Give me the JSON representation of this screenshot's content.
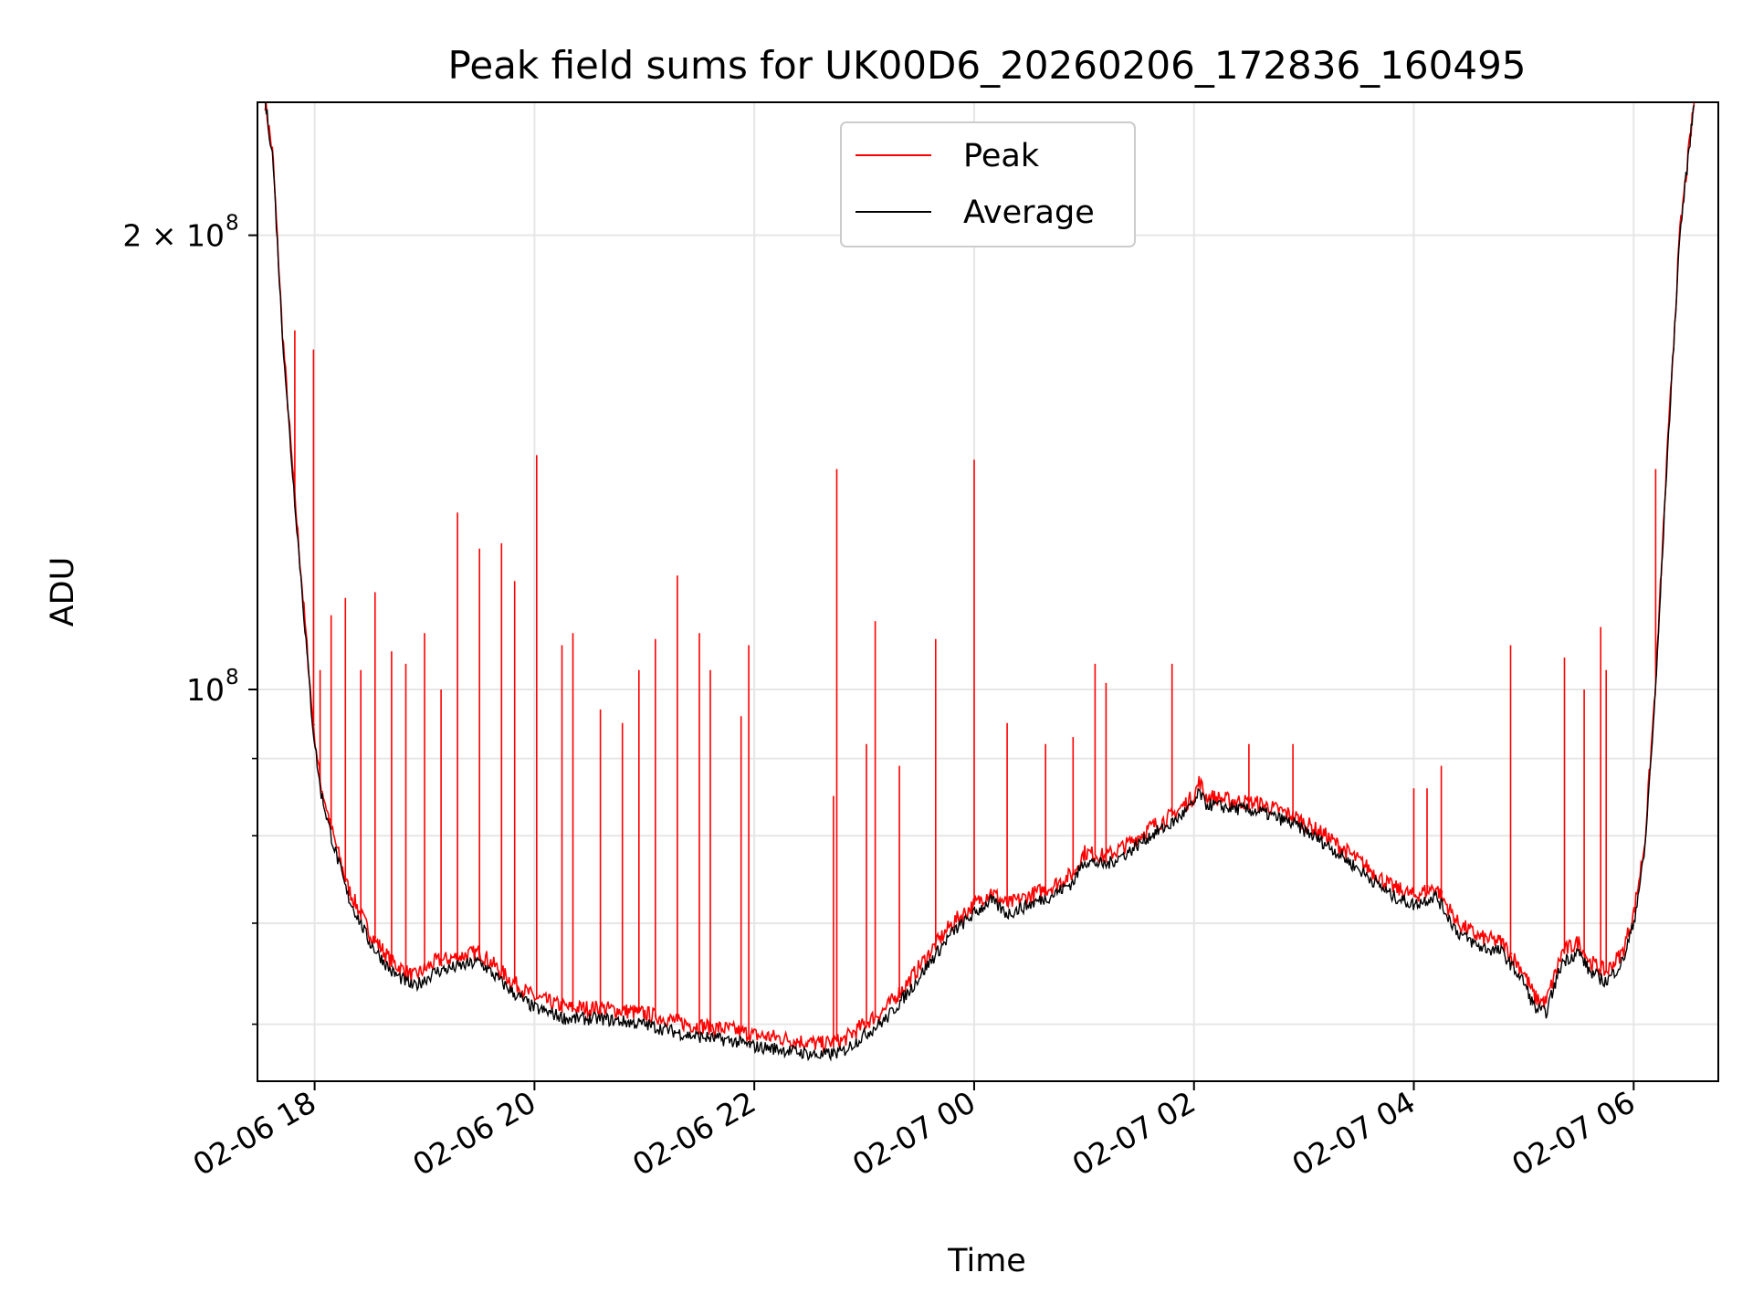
{
  "chart_data": {
    "type": "line",
    "title": "Peak field sums for UK00D6_20260206_172836_160495",
    "xlabel": "Time",
    "ylabel": "ADU",
    "yscale": "log",
    "ylim": [
      55000000,
      245000000
    ],
    "xlim_hours": [
      17.48,
      30.77
    ],
    "grid": true,
    "legend_position": "top-center",
    "x_ticks": [
      {
        "hour": 18,
        "label": "02-06 18"
      },
      {
        "hour": 20,
        "label": "02-06 20"
      },
      {
        "hour": 22,
        "label": "02-06 22"
      },
      {
        "hour": 24,
        "label": "02-07 00"
      },
      {
        "hour": 26,
        "label": "02-07 02"
      },
      {
        "hour": 28,
        "label": "02-07 04"
      },
      {
        "hour": 30,
        "label": "02-07 06"
      }
    ],
    "y_ticks_major": [
      {
        "value": 100000000,
        "base": "10",
        "exp": "8",
        "coef": ""
      },
      {
        "value": 200000000,
        "base": "10",
        "exp": "8",
        "coef": "2 × "
      }
    ],
    "y_ticks_minor": [
      60000000,
      70000000,
      80000000,
      90000000
    ],
    "series": [
      {
        "name": "Average",
        "color": "#000000",
        "points": [
          [
            17.55,
            245000000
          ],
          [
            17.62,
            225000000
          ],
          [
            17.7,
            175000000
          ],
          [
            17.78,
            145000000
          ],
          [
            17.85,
            125000000
          ],
          [
            17.92,
            108000000
          ],
          [
            17.98,
            95000000
          ],
          [
            18.05,
            86000000
          ],
          [
            18.15,
            80000000
          ],
          [
            18.3,
            73000000
          ],
          [
            18.5,
            68000000
          ],
          [
            18.7,
            65000000
          ],
          [
            18.9,
            63500000
          ],
          [
            19.1,
            65000000
          ],
          [
            19.3,
            65500000
          ],
          [
            19.5,
            66000000
          ],
          [
            19.8,
            63000000
          ],
          [
            20.0,
            61500000
          ],
          [
            20.3,
            60500000
          ],
          [
            20.6,
            60500000
          ],
          [
            21.0,
            60000000
          ],
          [
            21.4,
            59000000
          ],
          [
            21.8,
            58500000
          ],
          [
            22.0,
            58000000
          ],
          [
            22.2,
            57800000
          ],
          [
            22.4,
            57500000
          ],
          [
            22.6,
            57200000
          ],
          [
            22.8,
            57500000
          ],
          [
            23.0,
            59000000
          ],
          [
            23.2,
            60500000
          ],
          [
            23.4,
            63000000
          ],
          [
            23.6,
            66000000
          ],
          [
            23.8,
            69000000
          ],
          [
            24.0,
            71000000
          ],
          [
            24.15,
            72500000
          ],
          [
            24.3,
            71000000
          ],
          [
            24.5,
            72000000
          ],
          [
            24.7,
            73000000
          ],
          [
            24.9,
            74500000
          ],
          [
            25.0,
            77000000
          ],
          [
            25.2,
            76500000
          ],
          [
            25.4,
            78000000
          ],
          [
            25.6,
            80000000
          ],
          [
            25.8,
            81500000
          ],
          [
            26.0,
            84000000
          ],
          [
            26.05,
            85500000
          ],
          [
            26.1,
            84000000
          ],
          [
            26.3,
            83500000
          ],
          [
            26.6,
            83000000
          ],
          [
            26.9,
            81500000
          ],
          [
            27.2,
            79000000
          ],
          [
            27.5,
            76000000
          ],
          [
            27.8,
            73000000
          ],
          [
            28.0,
            72000000
          ],
          [
            28.2,
            73000000
          ],
          [
            28.4,
            69000000
          ],
          [
            28.6,
            67500000
          ],
          [
            28.8,
            67000000
          ],
          [
            29.0,
            64000000
          ],
          [
            29.1,
            61500000
          ],
          [
            29.2,
            61000000
          ],
          [
            29.35,
            66000000
          ],
          [
            29.5,
            67000000
          ],
          [
            29.6,
            65000000
          ],
          [
            29.75,
            64000000
          ],
          [
            29.9,
            66000000
          ],
          [
            30.0,
            70000000
          ],
          [
            30.1,
            78000000
          ],
          [
            30.2,
            100000000
          ],
          [
            30.3,
            140000000
          ],
          [
            30.42,
            200000000
          ],
          [
            30.55,
            245000000
          ]
        ]
      },
      {
        "name": "Peak",
        "color": "#ff0000",
        "points": [
          [
            17.55,
            245000000
          ],
          [
            17.62,
            226000000
          ],
          [
            17.7,
            176000000
          ],
          [
            17.78,
            146000000
          ],
          [
            17.85,
            126000000
          ],
          [
            17.92,
            109000000
          ],
          [
            17.98,
            96000000
          ],
          [
            18.05,
            87000000
          ],
          [
            18.15,
            81000000
          ],
          [
            18.3,
            74000000
          ],
          [
            18.5,
            69000000
          ],
          [
            18.7,
            66000000
          ],
          [
            18.9,
            64500000
          ],
          [
            19.1,
            66000000
          ],
          [
            19.3,
            66500000
          ],
          [
            19.5,
            67000000
          ],
          [
            19.8,
            64000000
          ],
          [
            20.0,
            62500000
          ],
          [
            20.3,
            61500000
          ],
          [
            20.6,
            61500000
          ],
          [
            21.0,
            61000000
          ],
          [
            21.4,
            60000000
          ],
          [
            21.8,
            59500000
          ],
          [
            22.0,
            59000000
          ],
          [
            22.2,
            58800000
          ],
          [
            22.4,
            58500000
          ],
          [
            22.6,
            58200000
          ],
          [
            22.8,
            58500000
          ],
          [
            23.0,
            60000000
          ],
          [
            23.2,
            61500000
          ],
          [
            23.4,
            64000000
          ],
          [
            23.6,
            67000000
          ],
          [
            23.8,
            70000000
          ],
          [
            24.0,
            72000000
          ],
          [
            24.15,
            73500000
          ],
          [
            24.3,
            72000000
          ],
          [
            24.5,
            73000000
          ],
          [
            24.7,
            74000000
          ],
          [
            24.9,
            75500000
          ],
          [
            25.0,
            78000000
          ],
          [
            25.2,
            77500000
          ],
          [
            25.4,
            79000000
          ],
          [
            25.6,
            81000000
          ],
          [
            25.8,
            82500000
          ],
          [
            26.0,
            85000000
          ],
          [
            26.05,
            87000000
          ],
          [
            26.1,
            85000000
          ],
          [
            26.3,
            84500000
          ],
          [
            26.6,
            84000000
          ],
          [
            26.9,
            82500000
          ],
          [
            27.2,
            80000000
          ],
          [
            27.5,
            77000000
          ],
          [
            27.8,
            74000000
          ],
          [
            28.0,
            73000000
          ],
          [
            28.2,
            74000000
          ],
          [
            28.4,
            70000000
          ],
          [
            28.6,
            68500000
          ],
          [
            28.8,
            68000000
          ],
          [
            29.0,
            65000000
          ],
          [
            29.1,
            62500000
          ],
          [
            29.2,
            62000000
          ],
          [
            29.35,
            67000000
          ],
          [
            29.5,
            68000000
          ],
          [
            29.6,
            66000000
          ],
          [
            29.75,
            65000000
          ],
          [
            29.9,
            67000000
          ],
          [
            30.0,
            71000000
          ],
          [
            30.1,
            79000000
          ],
          [
            30.2,
            101000000
          ],
          [
            30.3,
            141000000
          ],
          [
            30.42,
            201000000
          ],
          [
            30.55,
            245000000
          ]
        ],
        "spikes": [
          [
            17.82,
            173000000
          ],
          [
            17.99,
            168000000
          ],
          [
            18.05,
            103000000
          ],
          [
            18.15,
            112000000
          ],
          [
            18.28,
            115000000
          ],
          [
            18.42,
            103000000
          ],
          [
            18.55,
            116000000
          ],
          [
            18.7,
            106000000
          ],
          [
            18.83,
            104000000
          ],
          [
            19.0,
            109000000
          ],
          [
            19.15,
            100000000
          ],
          [
            19.3,
            131000000
          ],
          [
            19.5,
            124000000
          ],
          [
            19.7,
            125000000
          ],
          [
            19.82,
            118000000
          ],
          [
            20.02,
            143000000
          ],
          [
            20.25,
            107000000
          ],
          [
            20.35,
            109000000
          ],
          [
            20.6,
            97000000
          ],
          [
            20.8,
            95000000
          ],
          [
            20.95,
            103000000
          ],
          [
            21.1,
            108000000
          ],
          [
            21.3,
            119000000
          ],
          [
            21.5,
            109000000
          ],
          [
            21.6,
            103000000
          ],
          [
            21.88,
            96000000
          ],
          [
            21.95,
            107000000
          ],
          [
            22.72,
            85000000
          ],
          [
            22.75,
            140000000
          ],
          [
            23.02,
            92000000
          ],
          [
            23.1,
            111000000
          ],
          [
            23.32,
            89000000
          ],
          [
            23.65,
            108000000
          ],
          [
            24.0,
            142000000
          ],
          [
            24.3,
            95000000
          ],
          [
            24.65,
            92000000
          ],
          [
            24.9,
            93000000
          ],
          [
            25.1,
            104000000
          ],
          [
            25.2,
            101000000
          ],
          [
            25.8,
            104000000
          ],
          [
            26.5,
            92000000
          ],
          [
            26.9,
            92000000
          ],
          [
            28.0,
            86000000
          ],
          [
            28.12,
            86000000
          ],
          [
            28.25,
            89000000
          ],
          [
            28.88,
            107000000
          ],
          [
            29.37,
            105000000
          ],
          [
            29.55,
            100000000
          ],
          [
            29.7,
            110000000
          ],
          [
            29.75,
            103000000
          ],
          [
            30.2,
            140000000
          ]
        ]
      }
    ],
    "legend": [
      "Peak",
      "Average"
    ]
  }
}
